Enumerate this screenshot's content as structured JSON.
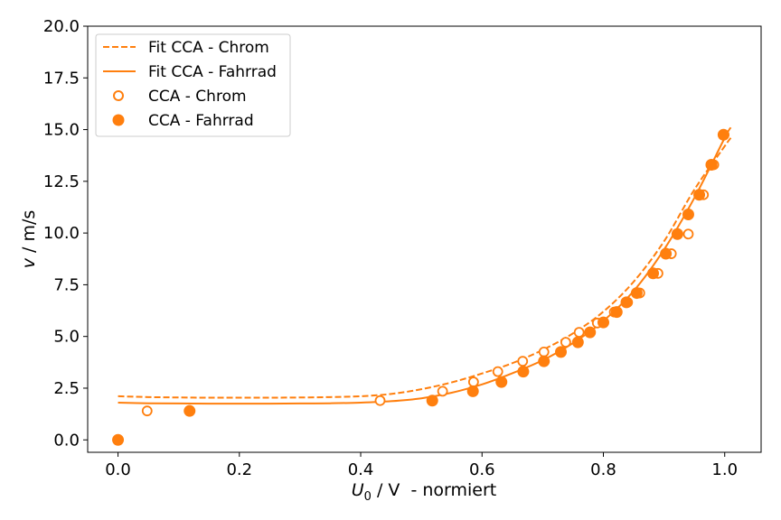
{
  "chart_data": {
    "type": "scatter",
    "title": "",
    "xlabel_parts": {
      "var": "U",
      "sub": "0",
      "rest": " / V  - normiert"
    },
    "ylabel_parts": {
      "var": "v",
      "rest": " / m/s"
    },
    "xlim": [
      -0.05,
      1.06
    ],
    "ylim": [
      -0.6,
      20.0
    ],
    "xticks": [
      "0.0",
      "0.2",
      "0.4",
      "0.6",
      "0.8",
      "1.0"
    ],
    "xtick_values": [
      0.0,
      0.2,
      0.4,
      0.6,
      0.8,
      1.0
    ],
    "yticks": [
      "0.0",
      "2.5",
      "5.0",
      "7.5",
      "10.0",
      "12.5",
      "15.0",
      "17.5",
      "20.0"
    ],
    "ytick_values": [
      0.0,
      2.5,
      5.0,
      7.5,
      10.0,
      12.5,
      15.0,
      17.5,
      20.0
    ],
    "grid": false,
    "legend_position": "top-left",
    "color": "#ff7f0e",
    "series": [
      {
        "name": "Fit CCA - Chrom",
        "kind": "line",
        "style": "dashed",
        "x": [
          0.0,
          0.05,
          0.1,
          0.15,
          0.2,
          0.25,
          0.3,
          0.35,
          0.4,
          0.45,
          0.5,
          0.55,
          0.6,
          0.65,
          0.7,
          0.75,
          0.8,
          0.85,
          0.9,
          0.95,
          1.0,
          1.01
        ],
        "y": [
          2.11,
          2.07,
          2.05,
          2.04,
          2.04,
          2.04,
          2.05,
          2.07,
          2.11,
          2.22,
          2.45,
          2.78,
          3.21,
          3.71,
          4.35,
          5.15,
          6.2,
          7.65,
          9.6,
          12.1,
          14.2,
          14.6
        ]
      },
      {
        "name": "Fit CCA - Fahrrad",
        "kind": "line",
        "style": "solid",
        "x": [
          0.0,
          0.05,
          0.1,
          0.15,
          0.2,
          0.25,
          0.3,
          0.35,
          0.4,
          0.45,
          0.5,
          0.55,
          0.6,
          0.65,
          0.7,
          0.75,
          0.8,
          0.85,
          0.9,
          0.95,
          1.0,
          1.01
        ],
        "y": [
          1.8,
          1.77,
          1.76,
          1.75,
          1.75,
          1.75,
          1.76,
          1.77,
          1.8,
          1.87,
          2.01,
          2.28,
          2.68,
          3.22,
          3.85,
          4.68,
          5.75,
          7.2,
          9.2,
          11.7,
          14.6,
          15.1
        ]
      },
      {
        "name": "CCA - Chrom",
        "kind": "scatter",
        "marker": "open-circle",
        "x": [
          0.0,
          0.048,
          0.432,
          0.535,
          0.586,
          0.626,
          0.667,
          0.702,
          0.738,
          0.76,
          0.79,
          0.818,
          0.84,
          0.86,
          0.89,
          0.912,
          0.94,
          0.965,
          0.982,
          0.999
        ],
        "y": [
          0.0,
          1.4,
          1.9,
          2.35,
          2.8,
          3.3,
          3.8,
          4.25,
          4.72,
          5.2,
          5.65,
          6.18,
          6.65,
          7.1,
          8.05,
          9.0,
          9.95,
          11.85,
          13.3,
          14.75
        ]
      },
      {
        "name": "CCA - Fahrrad",
        "kind": "scatter",
        "marker": "filled-circle",
        "x": [
          0.0,
          0.118,
          0.518,
          0.585,
          0.632,
          0.668,
          0.702,
          0.73,
          0.758,
          0.778,
          0.8,
          0.822,
          0.838,
          0.855,
          0.882,
          0.903,
          0.922,
          0.94,
          0.958,
          0.978,
          0.998
        ],
        "y": [
          0.0,
          1.4,
          1.9,
          2.35,
          2.8,
          3.3,
          3.8,
          4.25,
          4.72,
          5.2,
          5.68,
          6.18,
          6.65,
          7.1,
          8.05,
          9.0,
          9.95,
          10.9,
          11.85,
          13.3,
          14.75
        ]
      }
    ]
  }
}
